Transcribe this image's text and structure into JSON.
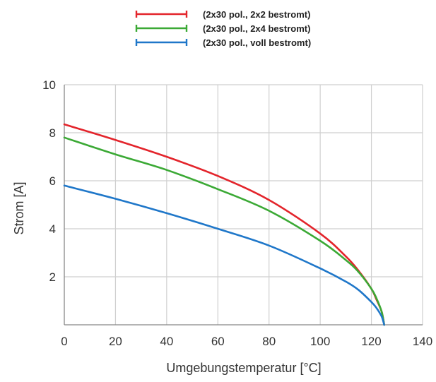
{
  "chart_data": {
    "type": "line",
    "xlabel": "Umgebungstemperatur [°C]",
    "ylabel": "Strom [A]",
    "xlim": [
      0,
      140
    ],
    "ylim": [
      0,
      10
    ],
    "x_ticks": [
      0,
      20,
      40,
      60,
      80,
      100,
      120,
      140
    ],
    "y_ticks": [
      2,
      4,
      6,
      8,
      10
    ],
    "x_tick_labels": [
      "0",
      "20",
      "40",
      "60",
      "80",
      "100",
      "120",
      "140"
    ],
    "y_tick_labels": [
      "2",
      "4",
      "6",
      "8",
      "10"
    ],
    "grid": true,
    "legend_position": "top",
    "series": [
      {
        "name": "(2x30 pol., 2x2 bestromt)",
        "color": "#e3242b",
        "x": [
          0,
          20,
          40,
          60,
          80,
          100,
          110,
          115,
          120,
          122,
          124,
          125
        ],
        "y": [
          8.35,
          7.7,
          7.0,
          6.2,
          5.2,
          3.8,
          2.85,
          2.25,
          1.5,
          1.05,
          0.55,
          0.0
        ]
      },
      {
        "name": "(2x30 pol., 2x4 bestromt)",
        "color": "#3ba935",
        "x": [
          0,
          20,
          40,
          60,
          80,
          100,
          110,
          115,
          120,
          122,
          124,
          125
        ],
        "y": [
          7.8,
          7.1,
          6.45,
          5.65,
          4.75,
          3.5,
          2.7,
          2.2,
          1.5,
          1.1,
          0.55,
          0.0
        ]
      },
      {
        "name": "(2x30 pol., voll bestromt)",
        "color": "#1f77c9",
        "x": [
          0,
          20,
          40,
          60,
          80,
          100,
          110,
          115,
          120,
          122,
          124,
          125
        ],
        "y": [
          5.8,
          5.25,
          4.65,
          4.0,
          3.3,
          2.35,
          1.8,
          1.45,
          0.95,
          0.7,
          0.35,
          0.0
        ]
      }
    ]
  }
}
